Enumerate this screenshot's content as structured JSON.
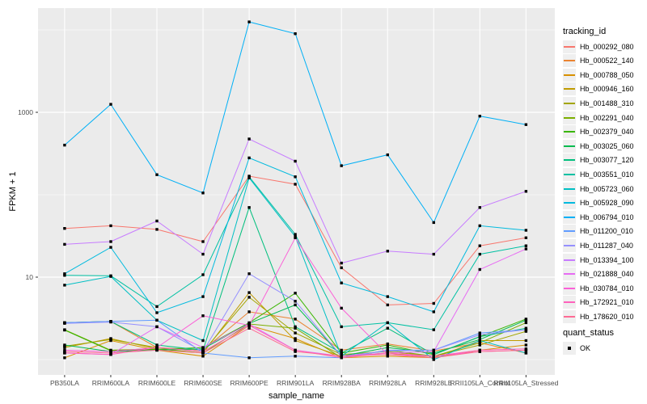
{
  "legend": {
    "tracking_title": "tracking_id",
    "quant_title": "quant_status",
    "quant_ok_label": "OK"
  },
  "axes": {
    "y_tick_labels": [
      "10",
      "1000"
    ],
    "tick_color": "#4d4d4d"
  },
  "colors": {
    "panel_bg": "#ebebeb",
    "grid": "#ffffff",
    "point": "#000000",
    "legend_key_bg": "#efefef"
  },
  "chart_data": {
    "type": "line",
    "title": "",
    "xlabel": "sample_name",
    "ylabel": "FPKM + 1",
    "y_scale": "log10",
    "ylim": [
      1,
      17000
    ],
    "grid": "on",
    "legend_position": "right",
    "point_shape": "black-square",
    "y_major_ticks": [
      10,
      1000
    ],
    "y_minor_gridlines": [
      1,
      100,
      10000
    ],
    "categories": [
      "PB350LA",
      "RRIM600LA",
      "RRIM600LE",
      "RRIM600SE",
      "RRIM600PE",
      "RRIM901LA",
      "RRIM928BA",
      "RRIM928LA",
      "RRIM928LE",
      "RRII105LA_Control",
      "RRII105LA_Stressed"
    ],
    "series": [
      {
        "name": "Hb_000292_080",
        "color": "#F8766D",
        "values": [
          39,
          42,
          38,
          27,
          168,
          134,
          13,
          4.6,
          4.8,
          24,
          30
        ]
      },
      {
        "name": "Hb_000522_140",
        "color": "#EA8331",
        "values": [
          2.8,
          2.9,
          1.4,
          1.3,
          3.8,
          3.1,
          1.3,
          1.55,
          1.27,
          1.6,
          1.2
        ]
      },
      {
        "name": "Hb_000788_050",
        "color": "#D89000",
        "values": [
          1.05,
          1.7,
          1.3,
          1.1,
          2.6,
          1.8,
          1.05,
          1.1,
          1.05,
          1.3,
          1.5
        ]
      },
      {
        "name": "Hb_000946_160",
        "color": "#C09B00",
        "values": [
          1.4,
          1.8,
          1.35,
          1.2,
          6.5,
          1.7,
          1.1,
          1.2,
          1.05,
          1.7,
          1.7
        ]
      },
      {
        "name": "Hb_001488_310",
        "color": "#A3A500",
        "values": [
          1.45,
          1.75,
          1.4,
          1.25,
          5.7,
          2.1,
          1.15,
          1.25,
          1.1,
          1.5,
          2.2
        ]
      },
      {
        "name": "Hb_002291_040",
        "color": "#7CAE00",
        "values": [
          2.3,
          1.3,
          1.35,
          1.2,
          2.7,
          2.4,
          1.05,
          1.3,
          1.1,
          1.6,
          2.8
        ]
      },
      {
        "name": "Hb_002379_040",
        "color": "#39B600",
        "values": [
          2.28,
          1.28,
          1.33,
          1.4,
          2.8,
          6.4,
          1.2,
          1.5,
          1.15,
          1.9,
          3.1
        ]
      },
      {
        "name": "Hb_003025_060",
        "color": "#00BB4E",
        "values": [
          1.5,
          1.25,
          1.3,
          1.35,
          2.75,
          4.6,
          1.1,
          1.4,
          1.2,
          1.75,
          3.0
        ]
      },
      {
        "name": "Hb_003077_120",
        "color": "#00BF7D",
        "values": [
          2.8,
          2.9,
          1.5,
          1.3,
          70,
          2.5,
          1.2,
          2.4,
          1.15,
          1.9,
          2.4
        ]
      },
      {
        "name": "Hb_003551_010",
        "color": "#00C1A3",
        "values": [
          10.5,
          10.4,
          4.4,
          10.7,
          165,
          33,
          2.5,
          2.8,
          2.3,
          19,
          24
        ]
      },
      {
        "name": "Hb_005723_060",
        "color": "#00BFC4",
        "values": [
          8,
          10.2,
          3.0,
          1.7,
          160,
          31,
          1.1,
          2.8,
          1.0,
          1.7,
          1.2
        ]
      },
      {
        "name": "Hb_005928_090",
        "color": "#00BADE",
        "values": [
          11,
          23,
          3.7,
          5.8,
          280,
          165,
          8.5,
          5.8,
          3.8,
          42,
          37
        ]
      },
      {
        "name": "Hb_006794_010",
        "color": "#00B0F6",
        "values": [
          400,
          1250,
          175,
          105,
          12500,
          9000,
          225,
          305,
          46,
          900,
          710
        ]
      },
      {
        "name": "Hb_011200_010",
        "color": "#619CFF",
        "values": [
          2.8,
          2.9,
          3.0,
          1.2,
          1.05,
          1.1,
          1.05,
          1.3,
          1.3,
          2.1,
          2.3
        ]
      },
      {
        "name": "Hb_011287_040",
        "color": "#9590FF",
        "values": [
          2.75,
          2.85,
          2.5,
          1.25,
          11,
          5.1,
          1.1,
          1.27,
          1.3,
          2.0,
          2.3
        ]
      },
      {
        "name": "Hb_013394_100",
        "color": "#C77CFF",
        "values": [
          25,
          27,
          48,
          19,
          475,
          255,
          14.8,
          20.7,
          19,
          70,
          110
        ]
      },
      {
        "name": "Hb_021888_040",
        "color": "#E76BF3",
        "values": [
          1.2,
          1.15,
          2.5,
          1.4,
          2.7,
          1.3,
          1.1,
          1.2,
          1.25,
          12.4,
          22
        ]
      },
      {
        "name": "Hb_030784_010",
        "color": "#FB61D7",
        "values": [
          1.3,
          1.25,
          1.4,
          3.4,
          2.6,
          30,
          4.2,
          1.15,
          1.1,
          1.25,
          1.3
        ]
      },
      {
        "name": "Hb_172921_010",
        "color": "#FF62BC",
        "values": [
          1.2,
          1.15,
          1.4,
          1.25,
          2.6,
          1.3,
          1.05,
          1.2,
          1.1,
          1.3,
          1.35
        ]
      },
      {
        "name": "Hb_178620_010",
        "color": "#FF6B94",
        "values": [
          1.25,
          1.2,
          1.3,
          1.2,
          2.4,
          1.25,
          1.1,
          1.15,
          1.05,
          1.25,
          1.3
        ]
      }
    ]
  }
}
